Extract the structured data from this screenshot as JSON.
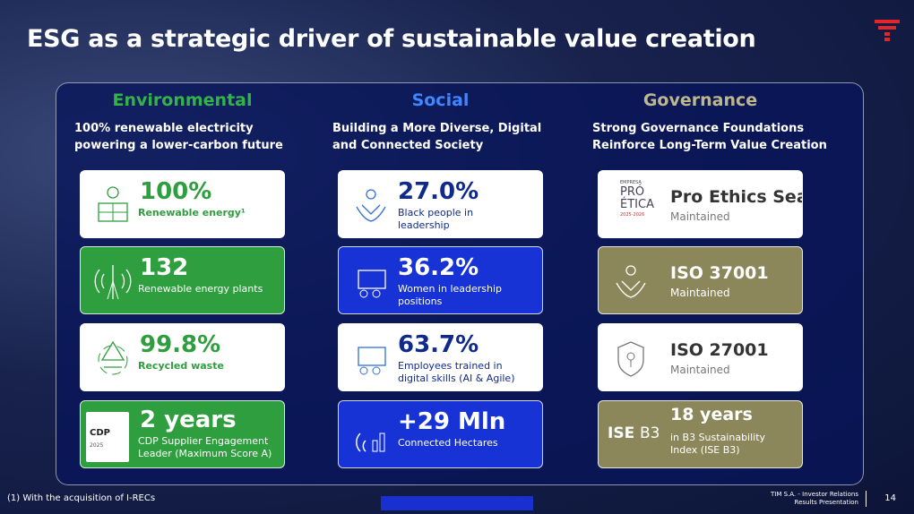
{
  "title": "ESG as a strategic driver of sustainable value creation",
  "columns": [
    {
      "heading": "Environmental",
      "subtitle": [
        "100% renewable electricity",
        "powering a lower-carbon future"
      ],
      "cards": [
        {
          "value": "100%",
          "label": [
            "Renewable energy¹"
          ]
        },
        {
          "value": "132",
          "label": [
            "Renewable energy plants"
          ]
        },
        {
          "value": "99.8%",
          "label": [
            "Recycled waste"
          ]
        },
        {
          "value": "2 years",
          "label": [
            "CDP Supplier Engagement",
            "Leader (Maximum Score A)"
          ],
          "logo": [
            "CDP",
            "2025"
          ]
        }
      ]
    },
    {
      "heading": "Social",
      "subtitle": [
        "Building a More Diverse, Digital",
        "and Connected Society"
      ],
      "cards": [
        {
          "value": "27.0%",
          "label": [
            "Black people in",
            "leadership"
          ]
        },
        {
          "value": "36.2%",
          "label": [
            "Women in leadership",
            "positions"
          ]
        },
        {
          "value": "63.7%",
          "label": [
            "Employees trained in",
            "digital skills (AI & Agile)"
          ]
        },
        {
          "value": "+29 Mln",
          "label": [
            "Connected Hectares"
          ]
        }
      ]
    },
    {
      "heading": "Governance",
      "subtitle": [
        "Strong Governance Foundations",
        "Reinforce Long-Term Value Creation"
      ],
      "cards": [
        {
          "value": "Pro Ethics Seal",
          "label": [
            "Maintained"
          ],
          "logo": [
            "EMPRESA",
            "PRÓ",
            "ÉTICA",
            "2025-2026"
          ]
        },
        {
          "value": "ISO 37001",
          "label": [
            "Maintained"
          ]
        },
        {
          "value": "ISO 27001",
          "label": [
            "Maintained"
          ]
        },
        {
          "value": "18 years",
          "label": [
            "in B3 Sustainability",
            "Index (ISE B3)"
          ],
          "logo": [
            "ISE",
            "B3"
          ]
        }
      ]
    }
  ],
  "footnote": "(1) With the acquisition of I-RECs",
  "footer": {
    "line1": "TIM S.A. - Investor Relations",
    "line2": "Results Presentation",
    "page": "14"
  }
}
